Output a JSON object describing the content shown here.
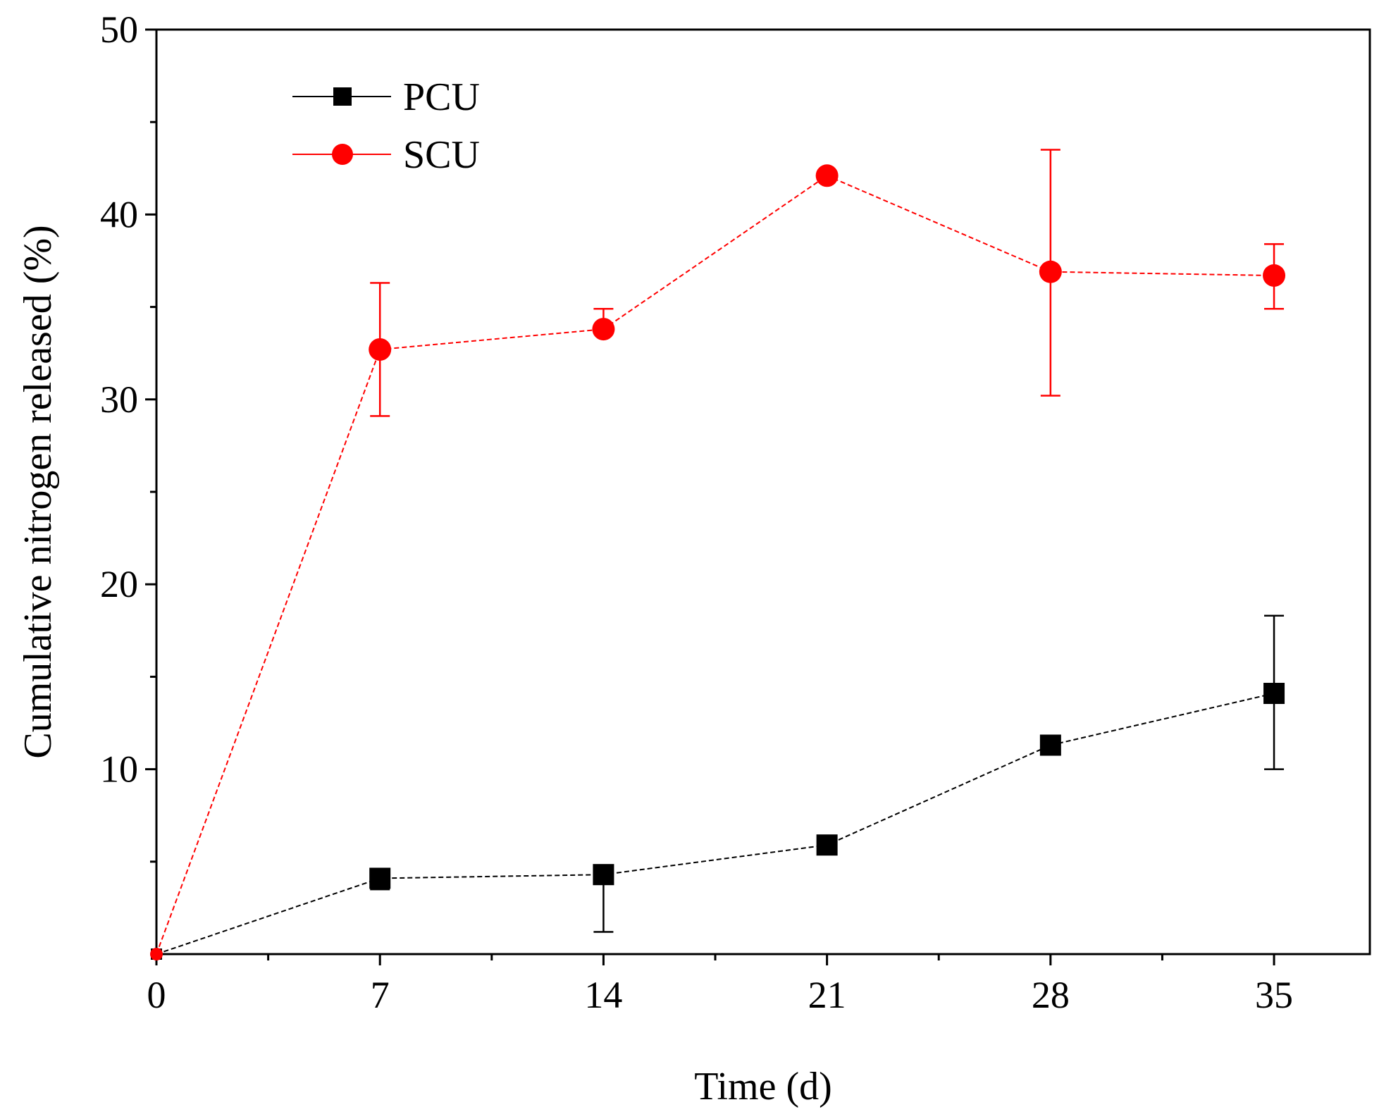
{
  "chart_data": {
    "type": "line",
    "title": "",
    "xlabel": "Time (d)",
    "ylabel": "Cumulative nitrogen released (%)",
    "xlim": [
      0,
      38
    ],
    "ylim": [
      0,
      50
    ],
    "x_ticks": [
      0,
      7,
      14,
      21,
      28,
      35
    ],
    "x_tick_labels": [
      "0",
      "7",
      "14",
      "21",
      "28",
      "35"
    ],
    "y_ticks": [
      10,
      20,
      30,
      40,
      50
    ],
    "y_tick_labels": [
      "10",
      "20",
      "30",
      "40",
      "50"
    ],
    "legend_position": "top-left",
    "series": [
      {
        "name": "PCU",
        "color": "#000000",
        "marker": "square",
        "x": [
          0,
          7,
          14,
          21,
          28,
          35
        ],
        "y": [
          0,
          4.1,
          4.3,
          5.9,
          11.3,
          14.1
        ],
        "error_low": [
          0,
          3.5,
          1.2,
          5.9,
          11.3,
          10.0
        ],
        "error_high": [
          0,
          4.6,
          4.3,
          5.9,
          11.3,
          18.3
        ]
      },
      {
        "name": "SCU",
        "color": "#ff0000",
        "marker": "circle",
        "x": [
          0,
          7,
          14,
          21,
          28,
          35
        ],
        "y": [
          0,
          32.7,
          33.8,
          42.1,
          36.9,
          36.7
        ],
        "error_low": [
          0,
          29.1,
          33.8,
          42.1,
          30.2,
          34.9
        ],
        "error_high": [
          0,
          36.3,
          34.9,
          42.1,
          43.5,
          38.4
        ]
      }
    ]
  }
}
